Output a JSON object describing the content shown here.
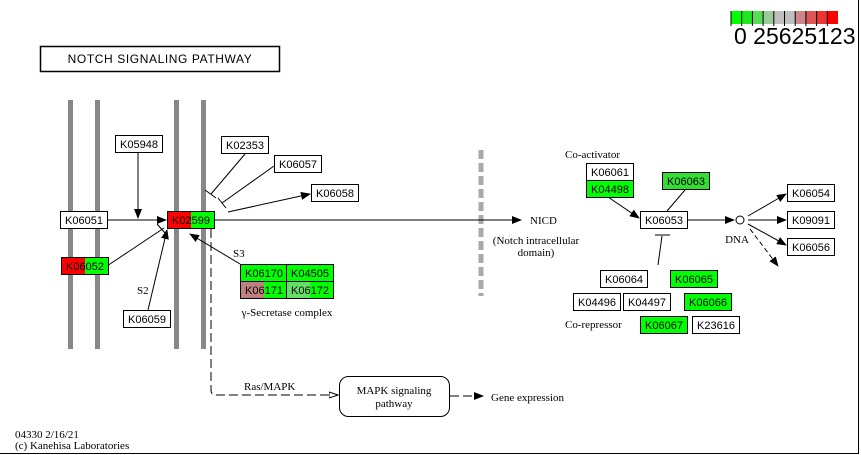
{
  "title": "NOTCH SIGNALING PATHWAY",
  "legend": {
    "colors": [
      "#00ff00",
      "#22e622",
      "#55dd55",
      "#99cc99",
      "#bfbfbf",
      "#bfbfbf",
      "#cc8888",
      "#dd5555",
      "#ee3333",
      "#ff0000"
    ],
    "labels_text": "0 25625123"
  },
  "nodes": [
    {
      "id": "K05948",
      "label": "K05948",
      "fill": [
        "#ffffff"
      ]
    },
    {
      "id": "K06051",
      "label": "K06051",
      "fill": [
        "#ffffff"
      ]
    },
    {
      "id": "K02599",
      "label": "K02599",
      "fill": [
        "#ff0000",
        "#00ff00"
      ]
    },
    {
      "id": "K06052",
      "label": "K06052",
      "fill": [
        "#ff0000",
        "#00ff00"
      ]
    },
    {
      "id": "K06059",
      "label": "K06059",
      "fill": [
        "#ffffff"
      ]
    },
    {
      "id": "K02353",
      "label": "K02353",
      "fill": [
        "#ffffff"
      ]
    },
    {
      "id": "K06057",
      "label": "K06057",
      "fill": [
        "#ffffff"
      ]
    },
    {
      "id": "K06058",
      "label": "K06058",
      "fill": [
        "#ffffff"
      ]
    },
    {
      "id": "K06170",
      "label": "K06170",
      "fill": [
        "#00ff00"
      ]
    },
    {
      "id": "K04505",
      "label": "K04505",
      "fill": [
        "#00ff00"
      ]
    },
    {
      "id": "K06171",
      "label": "K06171",
      "fill": [
        "#c08080",
        "#00ff00"
      ]
    },
    {
      "id": "K06172",
      "label": "K06172",
      "fill": [
        "#66dd66",
        "#00ff00"
      ]
    },
    {
      "id": "K06061",
      "label": "K06061",
      "fill": [
        "#ffffff"
      ]
    },
    {
      "id": "K04498",
      "label": "K04498",
      "fill": [
        "#00ff00"
      ]
    },
    {
      "id": "K06063",
      "label": "K06063",
      "fill": [
        "#33dd33"
      ]
    },
    {
      "id": "K06053",
      "label": "K06053",
      "fill": [
        "#ffffff"
      ]
    },
    {
      "id": "K06054",
      "label": "K06054",
      "fill": [
        "#ffffff"
      ]
    },
    {
      "id": "K09091",
      "label": "K09091",
      "fill": [
        "#ffffff"
      ]
    },
    {
      "id": "K06056",
      "label": "K06056",
      "fill": [
        "#ffffff"
      ]
    },
    {
      "id": "K06064",
      "label": "K06064",
      "fill": [
        "#ffffff"
      ]
    },
    {
      "id": "K06065",
      "label": "K06065",
      "fill": [
        "#00ff00"
      ]
    },
    {
      "id": "K04496",
      "label": "K04496",
      "fill": [
        "#ffffff"
      ]
    },
    {
      "id": "K04497",
      "label": "K04497",
      "fill": [
        "#ffffff"
      ]
    },
    {
      "id": "K06066",
      "label": "K06066",
      "fill": [
        "#00ff00"
      ]
    },
    {
      "id": "K06067",
      "label": "K06067",
      "fill": [
        "#00ff00"
      ]
    },
    {
      "id": "K23616",
      "label": "K23616",
      "fill": [
        "#ffffff"
      ]
    }
  ],
  "labels": {
    "s3": "S3",
    "s2": "S2",
    "gamma_secretase": "γ-Secretase complex",
    "nicd": "NICD",
    "nicd_full_1": "(Notch intracellular",
    "nicd_full_2": "domain)",
    "coactivator": "Co-activator",
    "corepressor": "Co-repressor",
    "dna": "DNA",
    "ras_mapk": "Ras/MAPK",
    "mapk_1": "MAPK signaling",
    "mapk_2": "pathway",
    "gene_expression": "Gene expression",
    "footer_1": "04330 2/16/21",
    "footer_2": "(c) Kanehisa Laboratories"
  }
}
